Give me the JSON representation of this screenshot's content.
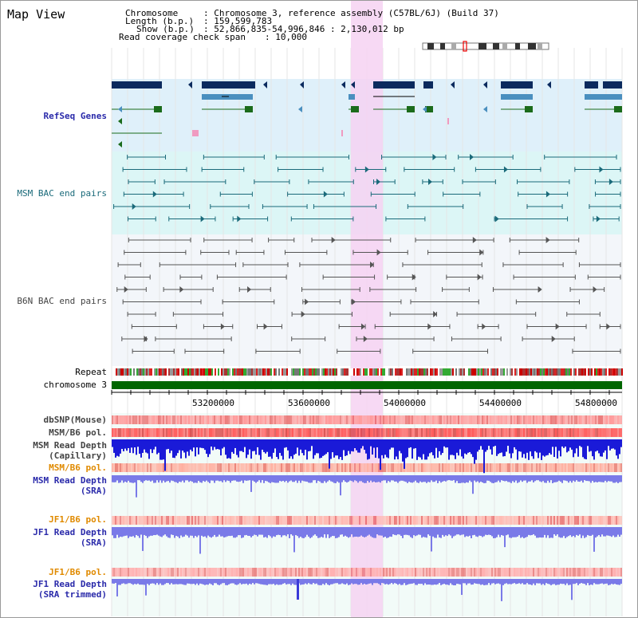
{
  "title": "Map View",
  "info": {
    "chromosome_key": "Chromosome",
    "chromosome_val": ": Chromosome 3, reference assembly (C57BL/6J) (Build 37)",
    "length_key": "Length (b.p.)",
    "length_val": ": 159,599,783",
    "show_key": "Show (b.p.)",
    "show_val": ": 52,866,835-54,996,846 : 2,130,012 bp",
    "coverage_key": "Read coverage check span",
    "coverage_val": ": 10,000"
  },
  "tracks": {
    "refseq_genes": "RefSeq Genes",
    "msm_bac": "MSM BAC end pairs",
    "b6n_bac": "B6N BAC end pairs",
    "repeat": "Repeat",
    "chromosome": "chromosome 3",
    "dbsnp": "dbSNP(Mouse)",
    "msm_b6_pol_1": "MSM/B6 pol.",
    "msm_depth_cap_1": "MSM Read Depth",
    "msm_depth_cap_2": "(Capillary)",
    "msm_b6_pol_2": "MSM/B6 pol.",
    "msm_depth_sra_1": "MSM Read Depth",
    "msm_depth_sra_2": "(SRA)",
    "jf1_b6_pol_1": "JF1/B6 pol.",
    "jf1_depth_sra_1": "JF1 Read Depth",
    "jf1_depth_sra_2": "(SRA)",
    "jf1_b6_pol_2": "JF1/B6 pol.",
    "jf1_depth_trim_1": "JF1 Read Depth",
    "jf1_depth_trim_2": "(SRA trimmed)"
  },
  "axis_ticks": [
    "53200000",
    "53600000",
    "54000000",
    "54400000",
    "54800000"
  ],
  "colors": {
    "refseq_bg": "#dff0fa",
    "msm_bg": "#dcf6f6",
    "b6n_bg": "#f3f6fa",
    "highlight": "#f6d2f2",
    "chromosome_bar": "#006600",
    "gene_navy": "#0b2a5e",
    "gene_steel": "#4a8fbf",
    "gene_green": "#1b6b1b",
    "depth_blue": "#1a1ad8",
    "depth_light": "#7a7ae8"
  }
}
